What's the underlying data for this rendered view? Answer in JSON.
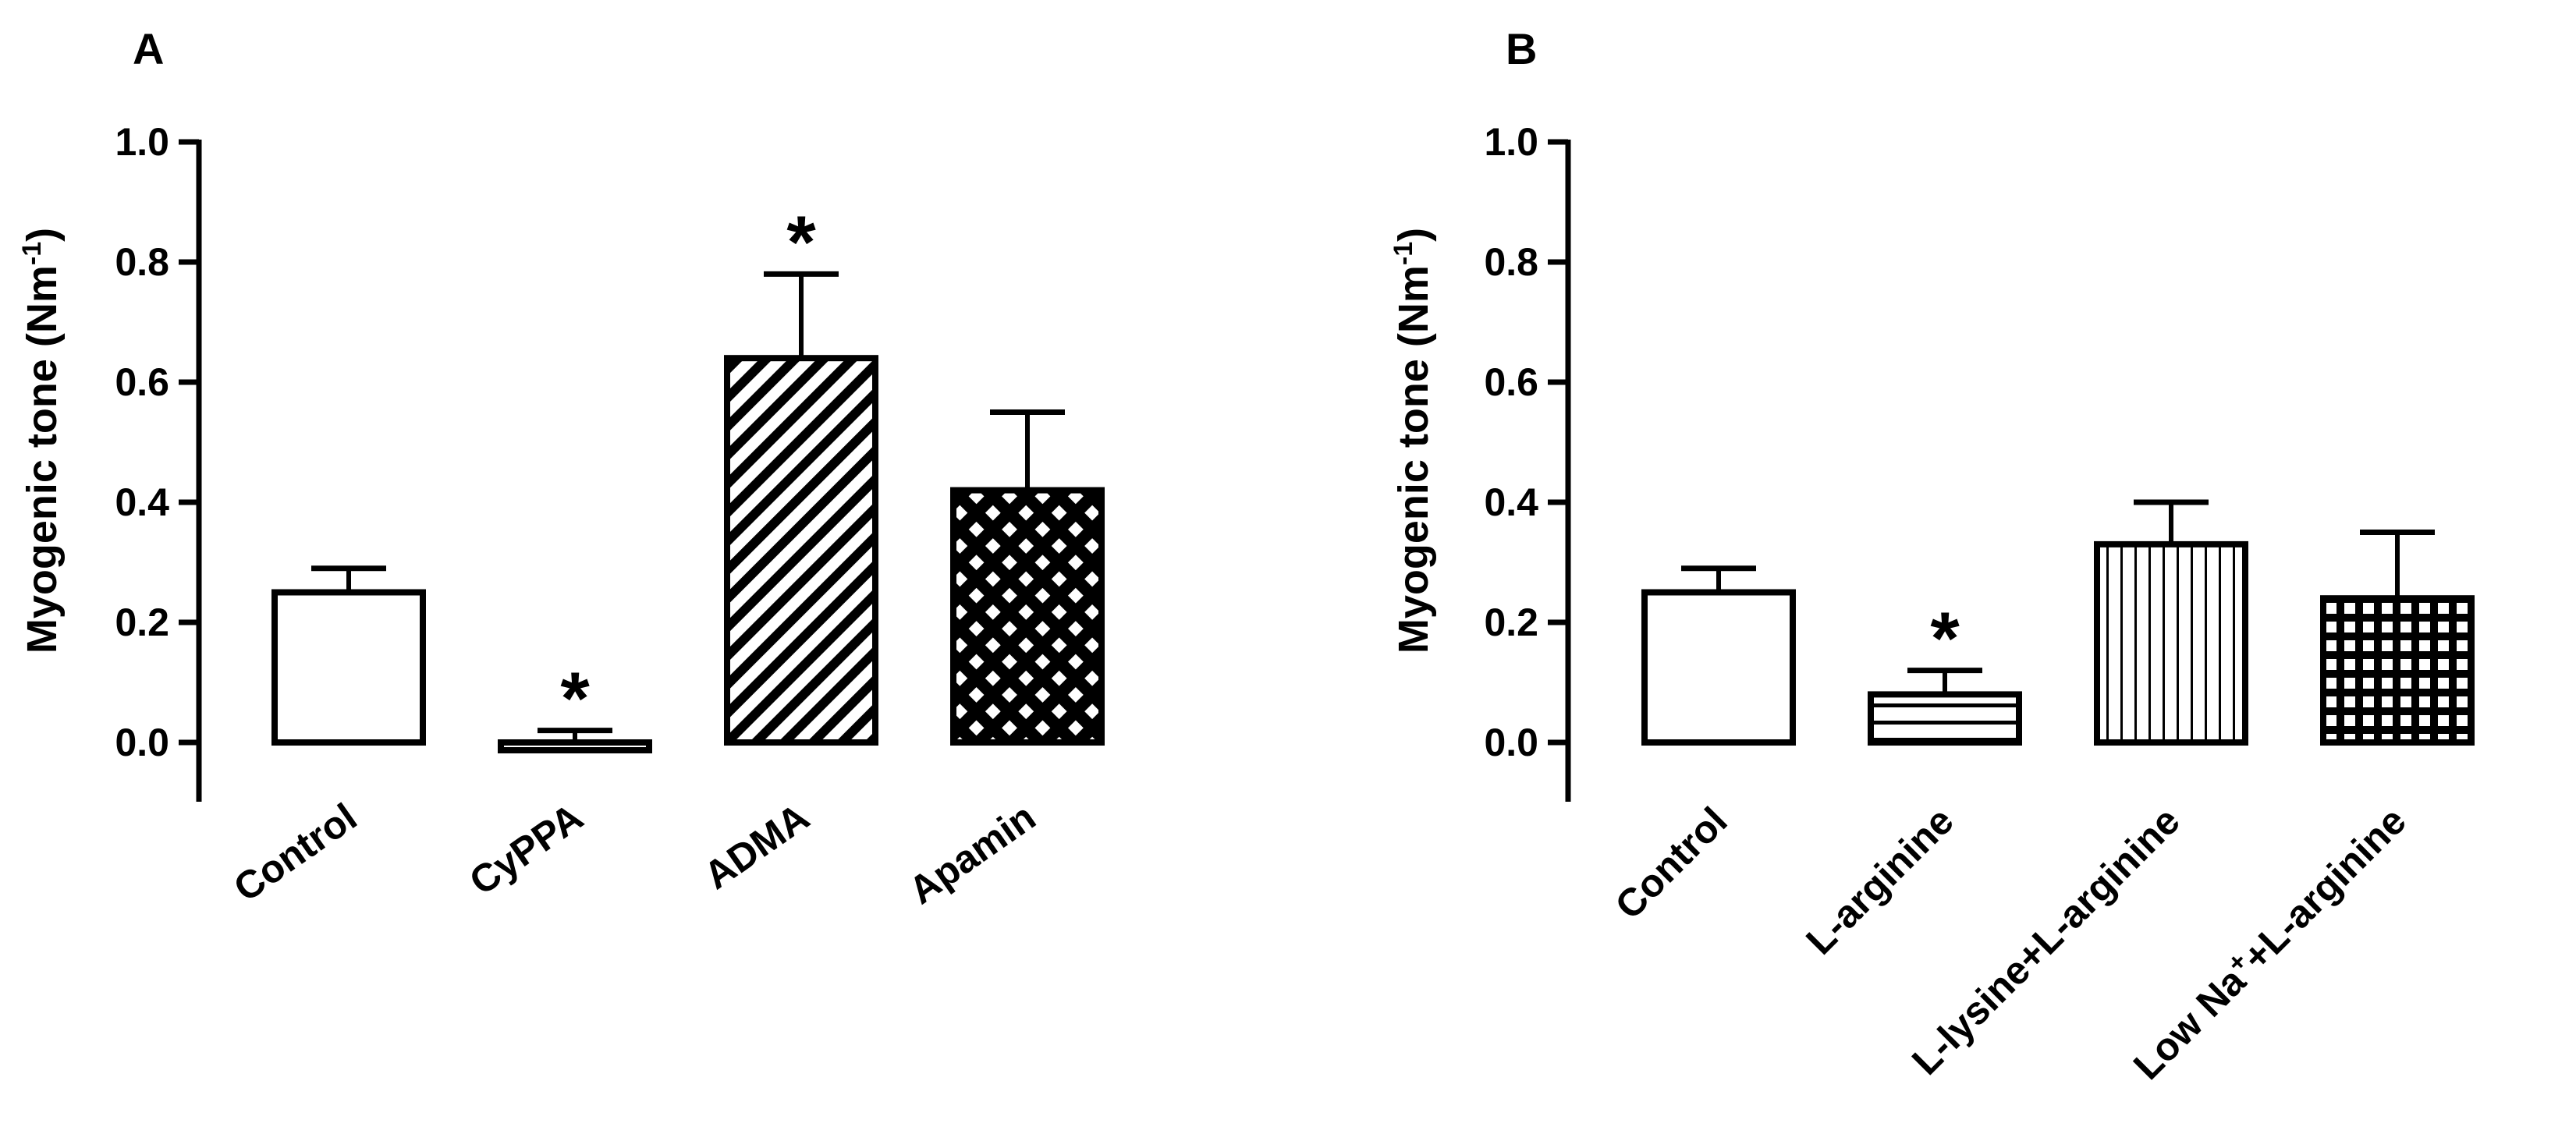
{
  "colors": {
    "ink": "#000000",
    "background": "#ffffff"
  },
  "chart_data": [
    {
      "panel_label": "A",
      "type": "bar",
      "ylabel": "Myogenic tone (Nm",
      "ylabel_sup": "-1",
      "ylabel_close": ")",
      "ylim": [
        -0.1,
        1.0
      ],
      "yticks": [
        "0.0",
        "0.2",
        "0.4",
        "0.6",
        "0.8",
        "1.0"
      ],
      "grid": false,
      "categories": [
        "Control",
        "CyPPA",
        "ADMA",
        "Apamin"
      ],
      "bars": [
        {
          "label": "Control",
          "value": 0.25,
          "error": 0.04,
          "pattern": "none",
          "star": ""
        },
        {
          "label": "CyPPA",
          "value": -0.01,
          "error": 0.03,
          "pattern": "none",
          "star": "*"
        },
        {
          "label": "ADMA",
          "value": 0.64,
          "error": 0.14,
          "pattern": "diagonal",
          "star": "*"
        },
        {
          "label": "Apamin",
          "value": 0.42,
          "error": 0.13,
          "pattern": "crosshatch",
          "star": ""
        }
      ]
    },
    {
      "panel_label": "B",
      "type": "bar",
      "ylabel": "Myogenic tone (Nm",
      "ylabel_sup": "-1",
      "ylabel_close": ")",
      "ylim": [
        -0.1,
        1.0
      ],
      "yticks": [
        "0.0",
        "0.2",
        "0.4",
        "0.6",
        "0.8",
        "1.0"
      ],
      "grid": false,
      "categories": [
        "Control",
        "L-arginine",
        "L-lysine+L-arginine",
        "Low Na⁺+L-arginine"
      ],
      "bars": [
        {
          "label": "Control",
          "value": 0.25,
          "error": 0.04,
          "pattern": "none",
          "star": ""
        },
        {
          "label": "L-arginine",
          "value": 0.08,
          "error": 0.04,
          "pattern": "horizontal",
          "star": "*"
        },
        {
          "label": "L-lysine+L-arginine",
          "value": 0.33,
          "error": 0.07,
          "pattern": "vertical",
          "star": ""
        },
        {
          "label": "Low Na⁺+L-arginine",
          "value": 0.24,
          "error": 0.11,
          "pattern": "grid",
          "star": ""
        }
      ]
    }
  ]
}
